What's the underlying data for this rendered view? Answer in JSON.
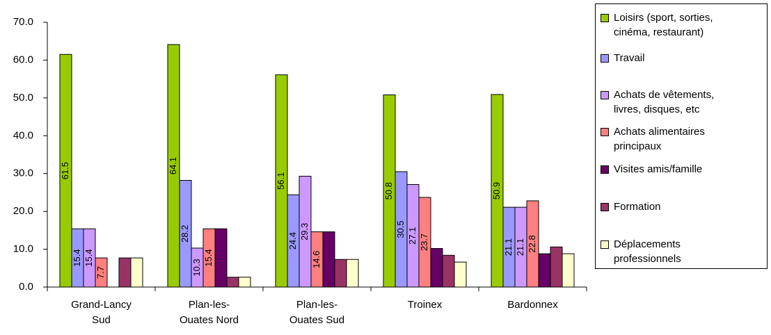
{
  "chart_data": {
    "type": "bar",
    "categories": [
      "Grand-Lancy\nSud",
      "Plan-les-\nOuates Nord",
      "Plan-les-\nOuates Sud",
      "Troinex",
      "Bardonnex"
    ],
    "series": [
      {
        "name": "Loisirs (sport, sorties,\ncinéma, restaurant)",
        "color": "#99cc00",
        "values": [
          61.5,
          64.1,
          56.1,
          50.8,
          50.9
        ],
        "data_labels": true
      },
      {
        "name": "Travail",
        "color": "#9999ff",
        "values": [
          15.4,
          28.2,
          24.4,
          30.5,
          21.1
        ],
        "data_labels": true
      },
      {
        "name": "Achats de vêtements,\nlivres, disques, etc",
        "color": "#cc99ff",
        "values": [
          15.4,
          10.3,
          29.3,
          27.1,
          21.1
        ],
        "data_labels": true
      },
      {
        "name": "Achats alimentaires\nprincipaux",
        "color": "#ff8080",
        "values": [
          7.7,
          15.4,
          14.6,
          23.7,
          22.8
        ],
        "data_labels": true
      },
      {
        "name": "Visites amis/famille",
        "color": "#660066",
        "values": [
          null,
          15.4,
          14.6,
          10.2,
          8.8
        ],
        "data_labels": false
      },
      {
        "name": "Formation",
        "color": "#993366",
        "values": [
          7.7,
          2.6,
          7.3,
          8.4,
          10.6
        ],
        "data_labels": false
      },
      {
        "name": "Déplacements\nprofessionnels",
        "color": "#ffffcc",
        "values": [
          7.7,
          2.6,
          7.3,
          6.6,
          8.8
        ],
        "data_labels": false
      }
    ],
    "ylim": [
      0,
      70
    ],
    "yticks": [
      {
        "value": 0,
        "label": "0.0"
      },
      {
        "value": 10,
        "label": "10.0"
      },
      {
        "value": 20,
        "label": "20.0"
      },
      {
        "value": 30,
        "label": "30.0"
      },
      {
        "value": 40,
        "label": "40.0"
      },
      {
        "value": 50,
        "label": "50.0"
      },
      {
        "value": 60,
        "label": "60.0"
      },
      {
        "value": 70,
        "label": "70.0"
      }
    ],
    "legend": "right"
  }
}
